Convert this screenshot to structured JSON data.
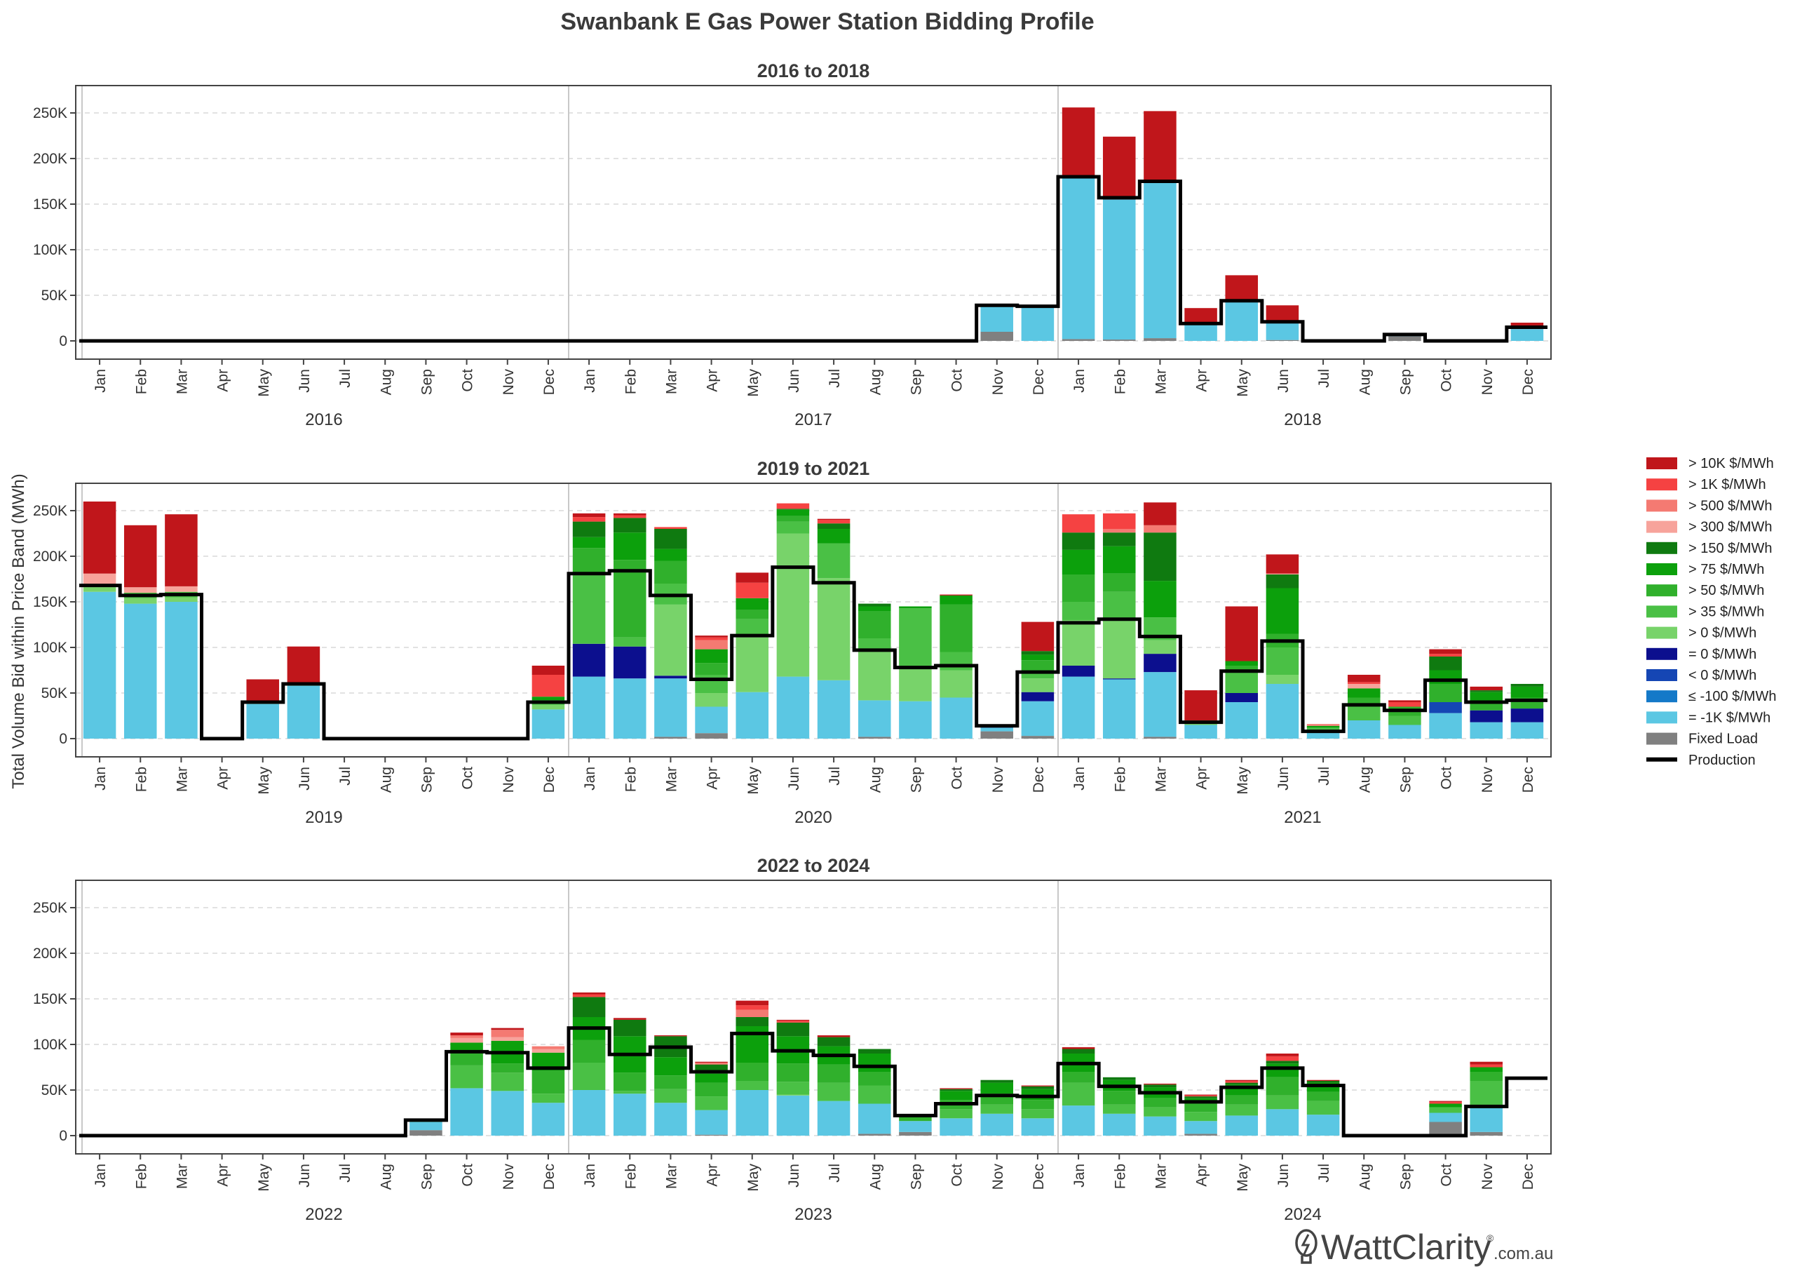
{
  "title": "Swanbank E Gas Power Station Bidding Profile",
  "ylabel": "Total Volume Bid within Price Band (MWh)",
  "brand": {
    "name": "WattClarity",
    "suffix": ".com.au",
    "reg": "®"
  },
  "colors": {
    "b10k": "#c0161b",
    "b1k": "#f54242",
    "b500": "#f47a72",
    "b300": "#f7a39b",
    "b150": "#0f7a10",
    "b75": "#0ca00c",
    "b50": "#30b02c",
    "b35": "#4ac045",
    "b0p": "#78d36a",
    "e0": "#0c0f8e",
    "l0": "#1546b4",
    "le100": "#1479c8",
    "m1k": "#5bc7e3",
    "fixed": "#808080",
    "production": "#000000"
  },
  "chart_data": {
    "type": "bar",
    "stacked": true,
    "ylim": [
      -20000,
      280000
    ],
    "yticks": [
      0,
      50000,
      100000,
      150000,
      200000,
      250000
    ],
    "ytick_labels": [
      "0",
      "50K",
      "100K",
      "150K",
      "200K",
      "250K"
    ],
    "grid": true,
    "legend_position": "right",
    "legend": [
      {
        "key": "b10k",
        "label": "> 10K $/MWh"
      },
      {
        "key": "b1k",
        "label": "> 1K $/MWh"
      },
      {
        "key": "b500",
        "label": "> 500 $/MWh"
      },
      {
        "key": "b300",
        "label": "> 300 $/MWh"
      },
      {
        "key": "b150",
        "label": "> 150 $/MWh"
      },
      {
        "key": "b75",
        "label": "> 75 $/MWh"
      },
      {
        "key": "b50",
        "label": "> 50 $/MWh"
      },
      {
        "key": "b35",
        "label": "> 35 $/MWh"
      },
      {
        "key": "b0p",
        "label": "> 0 $/MWh"
      },
      {
        "key": "e0",
        "label": "= 0 $/MWh"
      },
      {
        "key": "l0",
        "label": "< 0 $/MWh"
      },
      {
        "key": "le100",
        "label": "≤ -100 $/MWh"
      },
      {
        "key": "m1k",
        "label": "= -1K $/MWh"
      },
      {
        "key": "fixed",
        "label": "Fixed Load"
      },
      {
        "key": "production",
        "label": "Production"
      }
    ],
    "stack_order": [
      "fixed",
      "m1k",
      "le100",
      "l0",
      "e0",
      "b0p",
      "b35",
      "b50",
      "b75",
      "b150",
      "b300",
      "b500",
      "b1k",
      "b10k"
    ],
    "months": [
      "Jan",
      "Feb",
      "Mar",
      "Apr",
      "May",
      "Jun",
      "Jul",
      "Aug",
      "Sep",
      "Oct",
      "Nov",
      "Dec"
    ],
    "panels": [
      {
        "title": "2016 to 2018",
        "years": [
          "2016",
          "2017",
          "2018"
        ],
        "bars": [
          {},
          {},
          {},
          {},
          {},
          {},
          {},
          {},
          {},
          {},
          {},
          {},
          {},
          {},
          {},
          {},
          {},
          {},
          {},
          {},
          {},
          {},
          {
            "fixed": 10000,
            "m1k": 28000
          },
          {
            "m1k": 38000
          },
          {
            "fixed": 2000,
            "m1k": 178000,
            "b10k": 76000
          },
          {
            "fixed": 1500,
            "m1k": 153500,
            "b10k": 69000
          },
          {
            "fixed": 3000,
            "m1k": 172000,
            "b10k": 77000
          },
          {
            "m1k": 19000,
            "b10k": 17000
          },
          {
            "m1k": 43000,
            "b0p": 2000,
            "b10k": 27000
          },
          {
            "fixed": 1000,
            "m1k": 20000,
            "b10k": 18000
          },
          {},
          {},
          {
            "fixed": 5000,
            "m1k": 2000
          },
          {},
          {},
          {
            "m1k": 13000,
            "b10k": 5000,
            "b1k": 2000
          }
        ],
        "production": [
          0,
          0,
          0,
          0,
          0,
          0,
          0,
          0,
          0,
          0,
          0,
          0,
          0,
          0,
          0,
          0,
          0,
          0,
          0,
          0,
          0,
          0,
          39000,
          38000,
          180000,
          157000,
          175000,
          19000,
          44000,
          21000,
          0,
          0,
          7000,
          0,
          0,
          15000
        ]
      },
      {
        "title": "2019 to 2021",
        "years": [
          "2019",
          "2020",
          "2021"
        ],
        "bars": [
          {
            "m1k": 161000,
            "b0p": 5000,
            "b35": 3000,
            "b300": 12000,
            "b10k": 79000
          },
          {
            "m1k": 148000,
            "b35": 6000,
            "b0p": 6000,
            "b300": 6000,
            "b10k": 68000
          },
          {
            "m1k": 150000,
            "b35": 6000,
            "b0p": 5000,
            "b300": 6000,
            "b10k": 79000
          },
          {},
          {
            "m1k": 38000,
            "b0p": 2000,
            "b10k": 25000
          },
          {
            "m1k": 58000,
            "b0p": 2000,
            "b10k": 41000
          },
          {},
          {},
          {},
          {},
          {},
          {
            "m1k": 32000,
            "b0p": 5000,
            "b35": 5000,
            "b75": 4000,
            "b1k": 24000,
            "b10k": 10000
          },
          {
            "m1k": 68000,
            "e0": 36000,
            "b35": 75000,
            "b50": 30000,
            "b75": 12000,
            "b150": 17000,
            "b1k": 5000,
            "b10k": 4000
          },
          {
            "m1k": 66000,
            "e0": 35000,
            "b50": 85000,
            "b35": 10000,
            "b75": 30000,
            "b150": 16000,
            "b1k": 3000,
            "b10k": 2000
          },
          {
            "fixed": 2000,
            "m1k": 64000,
            "e0": 3000,
            "b0p": 78000,
            "b35": 23000,
            "b50": 25000,
            "b75": 13000,
            "b150": 22000,
            "b1k": 2000
          },
          {
            "fixed": 6000,
            "m1k": 29000,
            "b0p": 15000,
            "b35": 20000,
            "b50": 13000,
            "b75": 15000,
            "b500": 10000,
            "b1k": 3000,
            "b10k": 2000
          },
          {
            "m1k": 51000,
            "b0p": 60000,
            "b35": 20000,
            "b50": 10000,
            "b75": 13000,
            "b1k": 17000,
            "b10k": 11000
          },
          {
            "m1k": 68000,
            "b0p": 157000,
            "b35": 13000,
            "b50": 6000,
            "b75": 7000,
            "b150": 1000,
            "b1k": 6000,
            "b10k": 0
          },
          {
            "m1k": 64000,
            "b0p": 112000,
            "b35": 38000,
            "b75": 16000,
            "b150": 6000,
            "b1k": 4000,
            "b10k": 1000
          },
          {
            "fixed": 2000,
            "m1k": 40000,
            "b0p": 56000,
            "b35": 12000,
            "b50": 30000,
            "b75": 5000,
            "b150": 3000
          },
          {
            "m1k": 41000,
            "b0p": 36000,
            "b35": 66000,
            "b75": 2000
          },
          {
            "m1k": 45000,
            "b0p": 30000,
            "b50": 52000,
            "b35": 20000,
            "b75": 10000,
            "b10k": 1000
          },
          {
            "fixed": 8000,
            "m1k": 4000,
            "e0": 3000
          },
          {
            "fixed": 3000,
            "m1k": 38000,
            "e0": 10000,
            "b0p": 15000,
            "b35": 8000,
            "b50": 12000,
            "b75": 6000,
            "b150": 4000,
            "b10k": 32000
          },
          {
            "m1k": 68000,
            "e0": 12000,
            "b0p": 50000,
            "b35": 20000,
            "b50": 30000,
            "b75": 27000,
            "b150": 19000,
            "b1k": 20000
          },
          {
            "m1k": 65000,
            "e0": 1000,
            "b0p": 65000,
            "b35": 30000,
            "b50": 20000,
            "b75": 30000,
            "b150": 15000,
            "b1k": 17000,
            "b500": 4000
          },
          {
            "fixed": 2000,
            "m1k": 71000,
            "e0": 20000,
            "b0p": 15000,
            "b35": 25000,
            "b75": 40000,
            "b150": 53000,
            "b500": 8000,
            "b10k": 25000
          },
          {
            "m1k": 15000,
            "b0p": 5000,
            "b10k": 33000
          },
          {
            "m1k": 40000,
            "e0": 10000,
            "b35": 25000,
            "b50": 5000,
            "b75": 5000,
            "b10k": 60000
          },
          {
            "m1k": 60000,
            "b0p": 10000,
            "b35": 30000,
            "b50": 15000,
            "b75": 50000,
            "b150": 15000,
            "b300": 1000,
            "b10k": 21000
          },
          {
            "m1k": 8000,
            "b0p": 2000,
            "b35": 2000,
            "b75": 2000,
            "b500": 2000
          },
          {
            "m1k": 20000,
            "b35": 15000,
            "b50": 10000,
            "b75": 10000,
            "b300": 5000,
            "b1k": 2000,
            "b10k": 8000
          },
          {
            "m1k": 15000,
            "b35": 10000,
            "b50": 10000,
            "b1k": 5000,
            "b10k": 2000
          },
          {
            "m1k": 28000,
            "l0": 12000,
            "b50": 20000,
            "b75": 15000,
            "b150": 15000,
            "b1k": 3000,
            "b10k": 5000
          },
          {
            "m1k": 18000,
            "e0": 13000,
            "b50": 10000,
            "b75": 10000,
            "b150": 2000,
            "b10k": 4000
          },
          {
            "m1k": 18000,
            "e0": 15000,
            "b50": 12000,
            "b75": 12000,
            "b150": 3000
          }
        ],
        "production": [
          168000,
          157000,
          158000,
          0,
          40000,
          60000,
          0,
          0,
          0,
          0,
          0,
          40000,
          181000,
          184000,
          157000,
          65000,
          113000,
          188000,
          171000,
          97000,
          78000,
          80000,
          14000,
          73000,
          127000,
          131000,
          112000,
          18000,
          74000,
          107000,
          8000,
          37000,
          31000,
          64000,
          40000,
          42000
        ]
      },
      {
        "title": "2022 to 2024",
        "years": [
          "2022",
          "2023",
          "2024"
        ],
        "bars": [
          {},
          {},
          {},
          {},
          {},
          {},
          {},
          {},
          {
            "fixed": 6000,
            "m1k": 9000,
            "b0p": 1000,
            "b50": 2000
          },
          {
            "m1k": 52000,
            "b35": 25000,
            "b50": 15000,
            "b75": 10000,
            "b300": 5000,
            "b500": 3000,
            "b10k": 3000
          },
          {
            "m1k": 49000,
            "b35": 20000,
            "b50": 10000,
            "b75": 25000,
            "b300": 4000,
            "b500": 8000,
            "b10k": 2000
          },
          {
            "m1k": 36000,
            "b35": 10000,
            "b50": 25000,
            "b75": 20000,
            "b300": 4000,
            "b500": 3000
          },
          {
            "m1k": 50000,
            "b35": 30000,
            "b50": 25000,
            "b75": 25000,
            "b150": 22000,
            "b1k": 3000,
            "b10k": 2000
          },
          {
            "m1k": 46000,
            "b35": 3000,
            "b50": 20000,
            "b75": 40000,
            "b150": 18000,
            "b10k": 2000
          },
          {
            "m1k": 36000,
            "b35": 15000,
            "b50": 15000,
            "b75": 20000,
            "b150": 23000,
            "b10k": 1000
          },
          {
            "fixed": 1000,
            "m1k": 27000,
            "b35": 15000,
            "b50": 15000,
            "b75": 10000,
            "b150": 10000,
            "b500": 2000,
            "b10k": 1000
          },
          {
            "m1k": 50000,
            "b35": 10000,
            "b50": 20000,
            "b75": 40000,
            "b150": 10000,
            "b500": 8000,
            "b1k": 5000,
            "b10k": 5000
          },
          {
            "m1k": 44000,
            "b0p": 1000,
            "b35": 14000,
            "b50": 20000,
            "b75": 30000,
            "b150": 15000,
            "b1k": 2000,
            "b10k": 1000
          },
          {
            "m1k": 38000,
            "b35": 20000,
            "b50": 20000,
            "b75": 20000,
            "b150": 10000,
            "b10k": 2000
          },
          {
            "fixed": 2000,
            "m1k": 33000,
            "b35": 20000,
            "b50": 15000,
            "b75": 20000,
            "b150": 5000
          },
          {
            "fixed": 4000,
            "m1k": 12000,
            "b50": 4000,
            "b75": 3000
          },
          {
            "m1k": 19000,
            "b35": 10000,
            "b50": 10000,
            "b75": 10000,
            "b150": 2000,
            "b10k": 1000
          },
          {
            "m1k": 24000,
            "b35": 10000,
            "b50": 12000,
            "b75": 12000,
            "b150": 3000
          },
          {
            "m1k": 19000,
            "b35": 10000,
            "b50": 10000,
            "b75": 12000,
            "b150": 3000,
            "b10k": 1000
          },
          {
            "m1k": 33000,
            "b35": 25000,
            "b50": 12000,
            "b75": 20000,
            "b150": 5000,
            "b10k": 2000
          },
          {
            "m1k": 24000,
            "b35": 10000,
            "b50": 15000,
            "b75": 12000,
            "b150": 3000
          },
          {
            "m1k": 21000,
            "b35": 10000,
            "b50": 10000,
            "b75": 12000,
            "b150": 3000,
            "b10k": 1000
          },
          {
            "fixed": 2000,
            "m1k": 14000,
            "b35": 10000,
            "b50": 10000,
            "b75": 5000,
            "b150": 2000,
            "b1k": 1000,
            "b10k": 1000
          },
          {
            "m1k": 22000,
            "b35": 12000,
            "b50": 10000,
            "b75": 12000,
            "b150": 2000,
            "b1k": 2000,
            "b10k": 1000
          },
          {
            "m1k": 29000,
            "b35": 15000,
            "b50": 20000,
            "b75": 15000,
            "b150": 3000,
            "b1k": 5000,
            "b10k": 3000
          },
          {
            "m1k": 23000,
            "b35": 15000,
            "b50": 10000,
            "b75": 10000,
            "b150": 2000,
            "b10k": 1000
          },
          {},
          {},
          {
            "fixed": 15000,
            "m1k": 10000,
            "b35": 6000,
            "b75": 4000,
            "b1k": 2000,
            "b10k": 1000
          },
          {
            "fixed": 4000,
            "m1k": 26000,
            "b35": 30000,
            "b50": 10000,
            "b75": 5000,
            "b1k": 3000,
            "b10k": 3000
          }
        ],
        "production": [
          0,
          0,
          0,
          0,
          0,
          0,
          0,
          0,
          17000,
          92000,
          91000,
          74000,
          118000,
          89000,
          97000,
          70000,
          112000,
          93000,
          88000,
          76000,
          22000,
          35000,
          44000,
          43000,
          79000,
          54000,
          47000,
          37000,
          53000,
          74000,
          55000,
          0,
          0,
          0,
          32000,
          63000
        ]
      }
    ]
  }
}
